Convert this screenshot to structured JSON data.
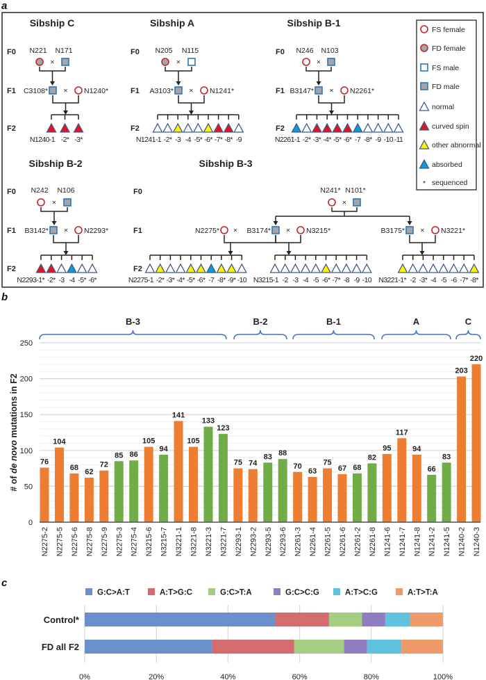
{
  "panel_labels": {
    "a": "a",
    "b": "b",
    "c": "c"
  },
  "pedigree": {
    "generation_labels": [
      "F0",
      "F1",
      "F2"
    ],
    "cross_symbol": "×",
    "colors": {
      "female_stroke": "#c0272d",
      "male_stroke": "#2e75b6",
      "fd_fill": "#a5a5a5",
      "normal": "#ffffff",
      "curved spin": "#e3141e",
      "other abnormal": "#fff200",
      "absorbed": "#1596d6",
      "triangle_stroke": "#3b5a8a"
    },
    "sibships": [
      {
        "title": "Sibship C",
        "f0": [
          {
            "name": "N221",
            "symbol": "FD female"
          },
          {
            "name": "N171",
            "symbol": "FD male"
          }
        ],
        "f1": [
          {
            "name": "C3108*",
            "symbol": "FD male"
          },
          {
            "name": "N1240*",
            "symbol": "FS female"
          }
        ],
        "crosses": [
          {
            "parents": [
              0,
              1
            ],
            "f2": {
              "phenotypes": [
                "curved spin",
                "curved spin",
                "curved spin"
              ],
              "labels": [
                "N1240-1",
                "-2*",
                "-3*"
              ]
            }
          }
        ]
      },
      {
        "title": "Sibship A",
        "f0": [
          {
            "name": "N205",
            "symbol": "FD female"
          },
          {
            "name": "N115",
            "symbol": "FS male"
          }
        ],
        "f1": [
          {
            "name": "A3103*",
            "symbol": "FD male"
          },
          {
            "name": "N1241*",
            "symbol": "FS female"
          }
        ],
        "crosses": [
          {
            "parents": [
              0,
              1
            ],
            "f2": {
              "phenotypes": [
                "normal",
                "normal",
                "other abnormal",
                "normal",
                "normal",
                "other abnormal",
                "curved spin",
                "curved spin",
                "normal"
              ],
              "labels": [
                "N1241-1",
                "-2*",
                "-3",
                "-4",
                "-5*",
                "-6*",
                "-7*",
                "-8*",
                "-9"
              ]
            }
          }
        ]
      },
      {
        "title": "Sibship B-1",
        "f0": [
          {
            "name": "N246",
            "symbol": "FS female"
          },
          {
            "name": "N103",
            "symbol": "FD male"
          }
        ],
        "f1": [
          {
            "name": "B3147*",
            "symbol": "FD male"
          },
          {
            "name": "N2261*",
            "symbol": "FS female"
          }
        ],
        "crosses": [
          {
            "parents": [
              0,
              1
            ],
            "f2": {
              "phenotypes": [
                "absorbed",
                "normal",
                "curved spin",
                "curved spin",
                "curved spin",
                "curved spin",
                "absorbed",
                "normal",
                "normal",
                "normal",
                "normal"
              ],
              "labels": [
                "N2261-1",
                "-2*",
                "-3*",
                "-4*",
                "-5*",
                "-6*",
                "-7",
                "-8*",
                "-9",
                "-10",
                "-11"
              ]
            }
          }
        ]
      },
      {
        "title": "Sibship B-2",
        "f0": [
          {
            "name": "N242",
            "symbol": "FS female"
          },
          {
            "name": "N106",
            "symbol": "FD male"
          }
        ],
        "f1": [
          {
            "name": "B3142*",
            "symbol": "FD male"
          },
          {
            "name": "N2293*",
            "symbol": "FS female"
          }
        ],
        "crosses": [
          {
            "parents": [
              0,
              1
            ],
            "f2": {
              "phenotypes": [
                "curved spin",
                "curved spin",
                "normal",
                "absorbed",
                "normal",
                "normal"
              ],
              "labels": [
                "N2293-1*",
                "-2*",
                "-3",
                "-4",
                "-5*",
                "-6*"
              ]
            }
          }
        ]
      },
      {
        "title": "Sibship B-3",
        "f0": [
          {
            "name": "N241*",
            "symbol": "FS female"
          },
          {
            "name": "N101*",
            "symbol": "FD male"
          }
        ],
        "f1": [
          {
            "name": "N2275*",
            "symbol": "FS female"
          },
          {
            "name": "B3174*",
            "symbol": "FD male"
          },
          {
            "name": "N3215*",
            "symbol": "FS female"
          },
          {
            "name": "B3175*",
            "symbol": "FD male"
          },
          {
            "name": "N3221*",
            "symbol": "FS female"
          }
        ],
        "crosses": [
          {
            "parents": [
              0,
              1
            ],
            "f2": {
              "phenotypes": [
                "normal",
                "other abnormal",
                "normal",
                "normal",
                "other abnormal",
                "other abnormal",
                "absorbed",
                "other abnormal",
                "other abnormal",
                "normal"
              ],
              "labels": [
                "N2275-1",
                "-2*",
                "-3*",
                "-4*",
                "-5*",
                "-6*",
                "-7",
                "-8*",
                "-9*",
                "-10"
              ]
            }
          },
          {
            "parents": [
              1,
              2
            ],
            "f2": {
              "phenotypes": [
                "normal",
                "normal",
                "normal",
                "normal",
                "normal",
                "other abnormal",
                "normal",
                "normal",
                "normal",
                "normal"
              ],
              "labels": [
                "N3215-1",
                "-2",
                "-3",
                "-4",
                "-5",
                "-6*",
                "-7*",
                "-8",
                "-9",
                "-10"
              ]
            }
          },
          {
            "parents": [
              3,
              4
            ],
            "f2": {
              "phenotypes": [
                "other abnormal",
                "normal",
                "normal",
                "normal",
                "normal",
                "normal",
                "normal",
                "other abnormal"
              ],
              "labels": [
                "N3221-1*",
                "-2",
                "-3*",
                "-4",
                "-5",
                "-6",
                "-7*",
                "-8*"
              ]
            }
          }
        ]
      }
    ],
    "legend": [
      {
        "symbol": "FS female",
        "label": "FS female"
      },
      {
        "symbol": "FD female",
        "label": "FD female"
      },
      {
        "symbol": "FS male",
        "label": "FS male"
      },
      {
        "symbol": "FD male",
        "label": "FD male"
      },
      {
        "symbol": "normal",
        "label": "normal"
      },
      {
        "symbol": "curved spin",
        "label": "curved spin"
      },
      {
        "symbol": "other abnormal",
        "label": "other abnormal"
      },
      {
        "symbol": "absorbed",
        "label": "absorbed"
      },
      {
        "symbol": "asterisk",
        "glyph": "*",
        "label": "sequenced"
      }
    ]
  },
  "chart_data": [
    {
      "type": "bar",
      "ylabel_parts": [
        "# of ",
        "de novo",
        " mutations in F2"
      ],
      "ylim": [
        0,
        250
      ],
      "yticks": [
        0,
        50,
        100,
        150,
        200,
        250
      ],
      "grid": true,
      "categories": [
        "N2275-2",
        "N2275-5",
        "N2275-6",
        "N2275-8",
        "N2275-9",
        "N2275-3",
        "N2275-4",
        "N3215-6",
        "N3215-7",
        "N3221-1",
        "N3221-8",
        "N3221-3",
        "N3221-7",
        "N2293-1",
        "N2293-2",
        "N2293-5",
        "N2293-6",
        "N2261-3",
        "N2261-4",
        "N2261-5",
        "N2261-6",
        "N2261-2",
        "N2261-8",
        "N1241-6",
        "N1241-7",
        "N1241-8",
        "N1241-2",
        "N1241-5",
        "N1240-2",
        "N1240-3"
      ],
      "values": [
        76,
        104,
        68,
        62,
        72,
        85,
        86,
        105,
        94,
        141,
        105,
        133,
        123,
        75,
        74,
        83,
        88,
        70,
        63,
        75,
        67,
        68,
        82,
        95,
        117,
        94,
        66,
        83,
        203,
        220
      ],
      "bar_colors": [
        "#ed7d31",
        "#ed7d31",
        "#ed7d31",
        "#ed7d31",
        "#ed7d31",
        "#70ad47",
        "#70ad47",
        "#ed7d31",
        "#70ad47",
        "#ed7d31",
        "#ed7d31",
        "#70ad47",
        "#70ad47",
        "#ed7d31",
        "#ed7d31",
        "#70ad47",
        "#70ad47",
        "#ed7d31",
        "#ed7d31",
        "#ed7d31",
        "#ed7d31",
        "#70ad47",
        "#70ad47",
        "#ed7d31",
        "#ed7d31",
        "#ed7d31",
        "#70ad47",
        "#70ad47",
        "#ed7d31",
        "#ed7d31"
      ],
      "groups": [
        {
          "label": "B-3",
          "start": 0,
          "end": 12
        },
        {
          "label": "B-2",
          "start": 13,
          "end": 16
        },
        {
          "label": "B-1",
          "start": 17,
          "end": 22
        },
        {
          "label": "A",
          "start": 23,
          "end": 27
        },
        {
          "label": "C",
          "start": 28,
          "end": 29
        }
      ]
    },
    {
      "type": "bar",
      "orientation": "horizontal",
      "stacked": true,
      "percent": true,
      "legend_position": "top",
      "xlim": [
        0,
        100
      ],
      "xticks": [
        "0%",
        "20%",
        "40%",
        "60%",
        "80%",
        "100%"
      ],
      "categories": [
        "Control*",
        "FD all F2"
      ],
      "series": [
        {
          "name": "G:C>A:T",
          "color": "#6a8fcb",
          "values": [
            53.2,
            35.5
          ]
        },
        {
          "name": "A:T>G:C",
          "color": "#d46c6f",
          "values": [
            15.0,
            23.0
          ]
        },
        {
          "name": "G:C>T:A",
          "color": "#a4cd82",
          "values": [
            9.2,
            13.9
          ]
        },
        {
          "name": "G:C>C:G",
          "color": "#8f7dbf",
          "values": [
            6.5,
            6.4
          ]
        },
        {
          "name": "A:T>C:G",
          "color": "#5fc3df",
          "values": [
            6.9,
            9.6
          ]
        },
        {
          "name": "A:T>T:A",
          "color": "#f0996b",
          "values": [
            9.2,
            11.6
          ]
        }
      ]
    }
  ]
}
